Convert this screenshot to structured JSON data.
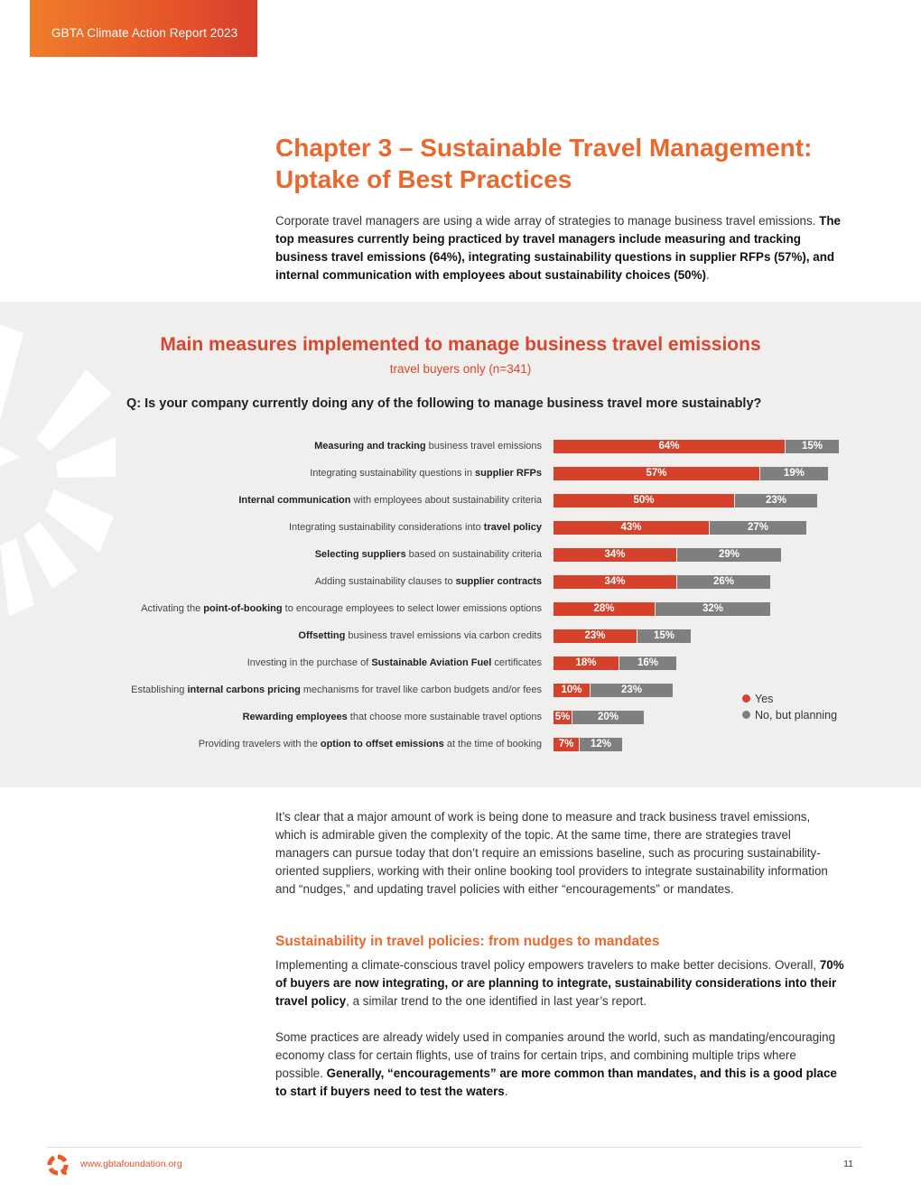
{
  "header": {
    "tab_label": "GBTA Climate Action Report 2023"
  },
  "chapter": {
    "title_line1": "Chapter 3 – Sustainable Travel Management:",
    "title_line2": "Uptake of Best Practices"
  },
  "intro": {
    "plain": "Corporate travel managers are using a wide array of strategies to manage business travel emissions. ",
    "bold": "The top measures currently being practiced by travel managers include measuring and tracking business travel emissions (64%), integrating sustainability questions in supplier RFPs (57%), and internal communication with employees about sustainability choices (50%)",
    "end": "."
  },
  "chart_data": {
    "type": "bar",
    "orientation": "horizontal",
    "stacked": true,
    "title": "Main measures implemented to manage business travel emissions",
    "subtitle": "travel buyers only (n=341)",
    "question": "Q: Is your company currently doing any of the following to manage business travel more sustainably?",
    "legend_placement": "bottom-right",
    "categories": [
      {
        "pre": "",
        "bold": "Measuring and tracking",
        "post": " business travel emissions"
      },
      {
        "pre": "Integrating sustainability questions in ",
        "bold": "supplier RFPs",
        "post": ""
      },
      {
        "pre": "",
        "bold": "Internal communication",
        "post": " with employees about sustainability criteria"
      },
      {
        "pre": "Integrating sustainability considerations into ",
        "bold": "travel policy",
        "post": ""
      },
      {
        "pre": "",
        "bold": "Selecting suppliers",
        "post": " based on sustainability criteria"
      },
      {
        "pre": "Adding sustainability clauses to ",
        "bold": "supplier contracts",
        "post": ""
      },
      {
        "pre": "Activating the ",
        "bold": "point-of-booking",
        "post": " to encourage employees to select lower emissions options"
      },
      {
        "pre": "",
        "bold": "Offsetting",
        "post": " business travel emissions via carbon credits"
      },
      {
        "pre": "Investing in the purchase of ",
        "bold": "Sustainable Aviation Fuel",
        "post": " certificates"
      },
      {
        "pre": "Establishing ",
        "bold": "internal carbons pricing",
        "post": " mechanisms for travel like carbon budgets and/or fees"
      },
      {
        "pre": "",
        "bold": "Rewarding employees",
        "post": " that choose more sustainable travel options"
      },
      {
        "pre": "Providing travelers with the ",
        "bold": "option to offset emissions",
        "post": " at the time of booking"
      }
    ],
    "series": [
      {
        "name": "Yes",
        "color": "#d6412b",
        "values": [
          64,
          57,
          50,
          43,
          34,
          34,
          28,
          23,
          18,
          10,
          5,
          7
        ]
      },
      {
        "name": "No, but planning",
        "color": "#7f7f80",
        "values": [
          15,
          19,
          23,
          27,
          29,
          26,
          32,
          15,
          16,
          23,
          20,
          12
        ]
      }
    ],
    "value_suffix": "%"
  },
  "body": {
    "p1": "It’s clear that a major amount of work is being done to measure and track business travel emissions, which is admirable given the complexity of the topic. At the same time, there are strategies travel managers can pursue today that don’t require an emissions baseline, such as procuring sustainability-oriented suppliers, working with their online booking tool providers to integrate sustainability information and “nudges,” and updating travel policies with either “encouragements” or mandates.",
    "section_heading": "Sustainability in travel policies: from nudges to mandates",
    "p2_plain1": "Implementing a climate-conscious travel policy empowers travelers to make better decisions. Overall, ",
    "p2_bold": "70% of buyers are now integrating, or are planning to integrate, sustainability considerations into their travel policy",
    "p2_plain2": ", a similar trend to the one identified in last year’s report.",
    "p3_plain": "Some practices are already widely used in companies around the world, such as mandating/encouraging economy class for certain flights, use of trains for certain trips, and combining multiple trips where possible. ",
    "p3_bold": "Generally, “encouragements” are more common than mandates, and this is a good place to start if buyers need to test the waters",
    "p3_end": "."
  },
  "footer": {
    "url": "www.gbtafoundation.org",
    "page": "11",
    "logo_icon": "gbta-logo-icon"
  }
}
